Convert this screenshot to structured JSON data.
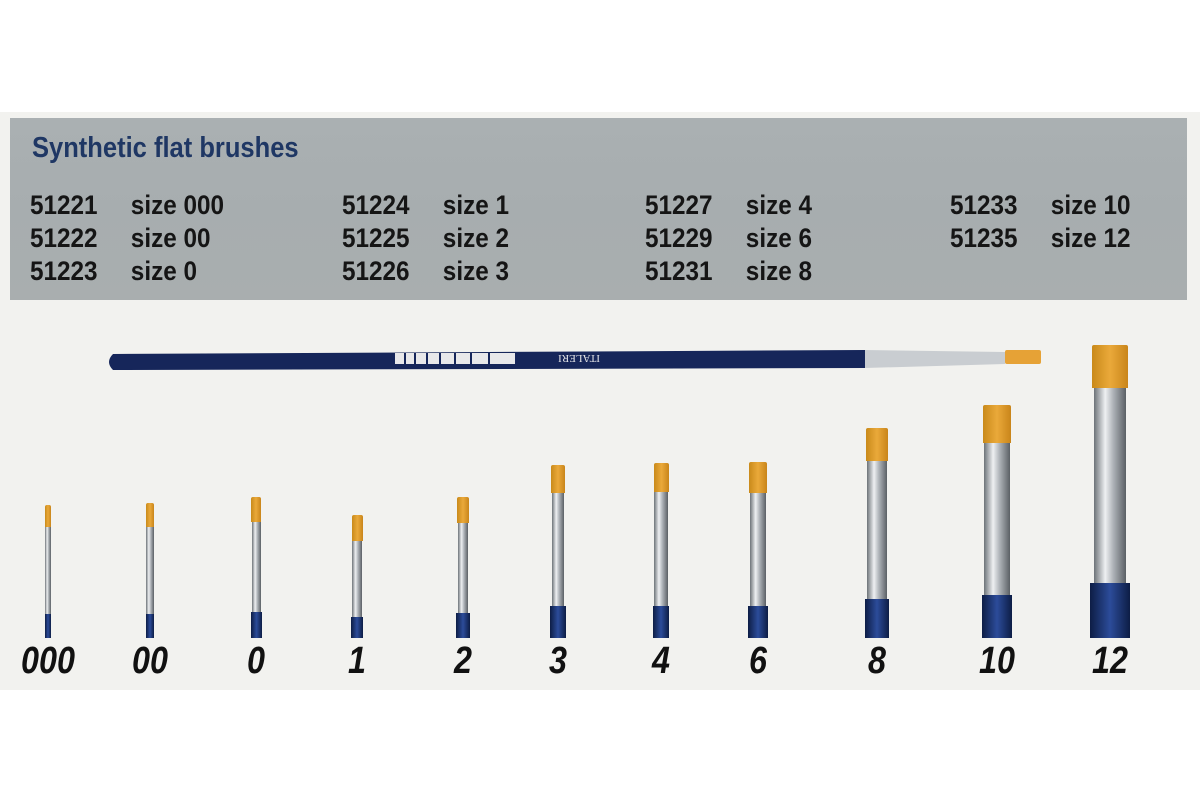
{
  "title": "Synthetic flat brushes",
  "columns": [
    [
      {
        "code": "51221",
        "size": "size 000"
      },
      {
        "code": "51222",
        "size": "size 00"
      },
      {
        "code": "51223",
        "size": "size 0"
      }
    ],
    [
      {
        "code": "51224",
        "size": "size 1"
      },
      {
        "code": "51225",
        "size": "size 2"
      },
      {
        "code": "51226",
        "size": "size 3"
      }
    ],
    [
      {
        "code": "51227",
        "size": "size 4"
      },
      {
        "code": "51229",
        "size": "size 6"
      },
      {
        "code": "51231",
        "size": "size 8"
      }
    ],
    [
      {
        "code": "51233",
        "size": "size 10"
      },
      {
        "code": "51235",
        "size": "size 12"
      }
    ]
  ],
  "brand": "ITALERI",
  "brush_labels": [
    "000",
    "00",
    "0",
    "1",
    "2",
    "3",
    "4",
    "6",
    "8",
    "10",
    "12"
  ],
  "colors": {
    "title": "#1f3764",
    "handle": "#1b2f6b",
    "bristles": "#e09a2a",
    "panel": "#a9aeb0"
  }
}
